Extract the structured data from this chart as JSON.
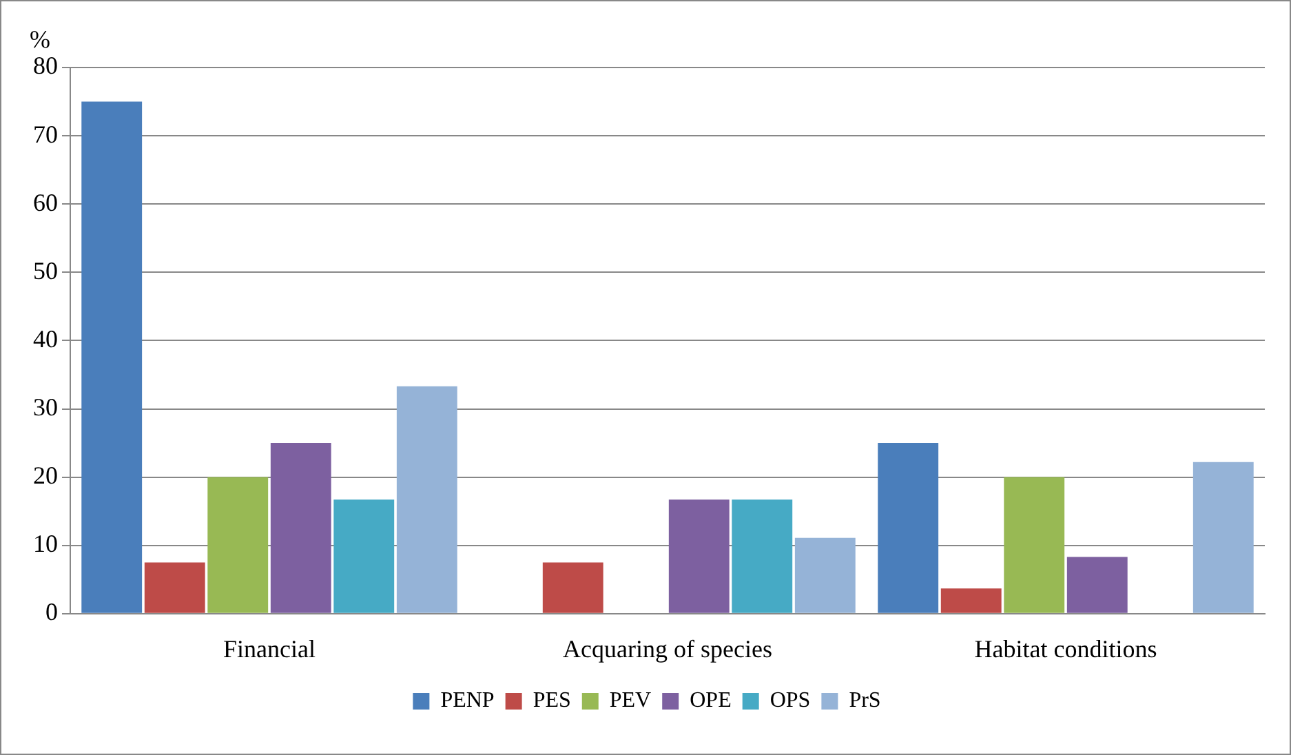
{
  "chart_data": {
    "type": "bar",
    "ylabel": "%",
    "categories": [
      "Financial",
      "Acquaring of species",
      "Habitat conditions"
    ],
    "series": [
      {
        "name": "PENP",
        "color": "#4a7ebb",
        "values": [
          75,
          0,
          25
        ]
      },
      {
        "name": "PES",
        "color": "#be4b48",
        "values": [
          7.5,
          7.5,
          3.7
        ]
      },
      {
        "name": "PEV",
        "color": "#98b954",
        "values": [
          20,
          0,
          20
        ]
      },
      {
        "name": "OPE",
        "color": "#7d60a0",
        "values": [
          25,
          16.7,
          8.3
        ]
      },
      {
        "name": "OPS",
        "color": "#46aac5",
        "values": [
          16.7,
          16.7,
          0
        ]
      },
      {
        "name": "PrS",
        "color": "#95b3d7",
        "values": [
          33.3,
          11.1,
          22.2
        ]
      }
    ],
    "ylim": [
      0,
      80
    ],
    "yticks": [
      0,
      10,
      20,
      30,
      40,
      50,
      60,
      70,
      80
    ],
    "grid": "y",
    "legend": "bottom"
  }
}
